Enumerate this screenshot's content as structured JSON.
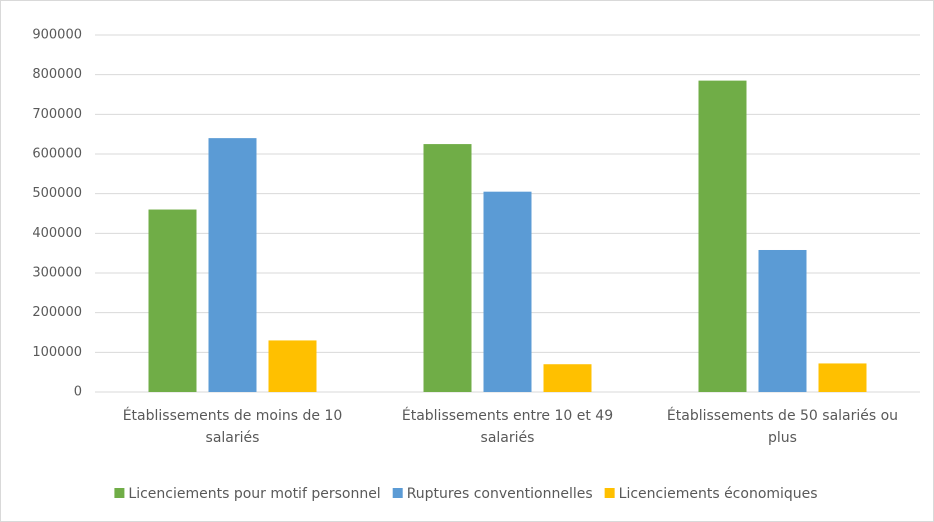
{
  "chart_data": {
    "type": "bar",
    "categories": [
      "Établissements de moins de 10 salariés",
      "Établissements entre 10 et 49 salariés",
      "Établissements de 50 salariés ou plus"
    ],
    "series": [
      {
        "name": "Licenciements pour motif personnel",
        "color": "#70ad47",
        "values": [
          460000,
          625000,
          785000
        ]
      },
      {
        "name": "Ruptures conventionnelles",
        "color": "#5b9bd5",
        "values": [
          640000,
          505000,
          358000
        ]
      },
      {
        "name": "Licenciements économiques",
        "color": "#ffc000",
        "values": [
          130000,
          70000,
          72000
        ]
      }
    ],
    "ylim": [
      0,
      900000
    ],
    "yticks": [
      0,
      100000,
      200000,
      300000,
      400000,
      500000,
      600000,
      700000,
      800000,
      900000
    ],
    "grid": true,
    "legend": "bottom"
  }
}
